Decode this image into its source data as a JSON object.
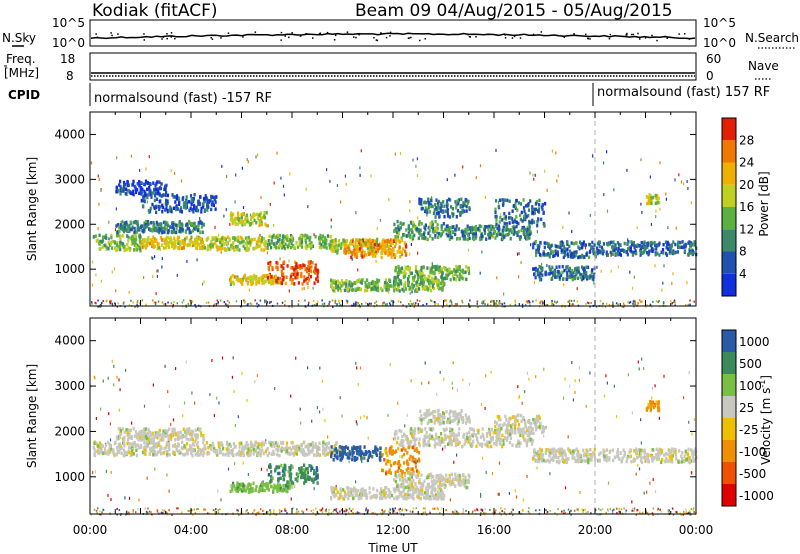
{
  "header": {
    "station": "Kodiak (fitACF)",
    "beam_info": "Beam 09 04/Aug/2015 - 05/Aug/2015"
  },
  "strip_labels": {
    "nsky": "N.Sky",
    "nsky_ticks": [
      "10^5",
      "10^0"
    ],
    "nsearch": "N.Search",
    "nsearch_ticks": [
      "10^5",
      "10^0"
    ],
    "freq_top": "Freq.",
    "freq_bottom": "[MHz]",
    "freq_ticks": [
      "18",
      "8"
    ],
    "nave": "Nave",
    "nave_ticks": [
      "60",
      "0"
    ],
    "cpid": "CPID",
    "cpid_left": "normalsound (fast) -157 RF",
    "cpid_right": "normalsound (fast) 157 RF"
  },
  "colors": {
    "power": [
      "#1030e0",
      "#2050b0",
      "#3a8a6a",
      "#5ab040",
      "#c0d020",
      "#f0b000",
      "#f07a00",
      "#e02000"
    ],
    "velocity": [
      "#e00000",
      "#f05000",
      "#f09000",
      "#f0c000",
      "#c8c8c0",
      "#7ac040",
      "#3a8a5a",
      "#2a5aa8"
    ],
    "dashed": "#b0b0b0"
  },
  "chart_data": [
    {
      "type": "heatmap",
      "name": "power",
      "ylabel": "Slant Range [km]",
      "ylim": [
        180,
        4500
      ],
      "yticks": [
        "1000",
        "2000",
        "3000",
        "4000"
      ],
      "colorbar_label": "Power [dB]",
      "colorbar_ticks": [
        "4",
        "8",
        "12",
        "16",
        "20",
        "24",
        "28"
      ],
      "colorbar_range": [
        0,
        32
      ],
      "bands": [
        {
          "t0": 0.1,
          "t1": 2.0,
          "r0": 1450,
          "r1": 1800,
          "v": 14
        },
        {
          "t0": 2.0,
          "t1": 4.5,
          "r0": 1500,
          "r1": 1750,
          "v": 20
        },
        {
          "t0": 4.5,
          "t1": 7.0,
          "r0": 1450,
          "r1": 1750,
          "v": 18
        },
        {
          "t0": 7.0,
          "t1": 9.5,
          "r0": 1500,
          "r1": 1800,
          "v": 14
        },
        {
          "t0": 9.5,
          "t1": 12.0,
          "r0": 1400,
          "r1": 1700,
          "v": 18
        },
        {
          "t0": 12.0,
          "t1": 14.0,
          "r0": 1700,
          "r1": 2100,
          "v": 12
        },
        {
          "t0": 14.0,
          "t1": 17.5,
          "r0": 1700,
          "r1": 2000,
          "v": 10
        },
        {
          "t0": 17.5,
          "t1": 20.0,
          "r0": 1300,
          "r1": 1650,
          "v": 8
        },
        {
          "t0": 20.0,
          "t1": 24.0,
          "r0": 1350,
          "r1": 1650,
          "v": 7
        },
        {
          "t0": 1.0,
          "t1": 4.5,
          "r0": 1850,
          "r1": 2100,
          "v": 10
        },
        {
          "t0": 5.5,
          "t1": 7.0,
          "r0": 2000,
          "r1": 2300,
          "v": 18
        },
        {
          "t0": 5.5,
          "t1": 7.5,
          "r0": 700,
          "r1": 900,
          "v": 20
        },
        {
          "t0": 7.0,
          "t1": 9.0,
          "r0": 700,
          "r1": 1200,
          "v": 28
        },
        {
          "t0": 9.5,
          "t1": 14.0,
          "r0": 550,
          "r1": 800,
          "v": 14
        },
        {
          "t0": 10.0,
          "t1": 12.5,
          "r0": 1300,
          "r1": 1700,
          "v": 24
        },
        {
          "t0": 12.0,
          "t1": 15.0,
          "r0": 800,
          "r1": 1100,
          "v": 14
        },
        {
          "t0": 2.0,
          "t1": 5.0,
          "r0": 2300,
          "r1": 2700,
          "v": 6
        },
        {
          "t0": 1.0,
          "t1": 3.0,
          "r0": 2700,
          "r1": 3000,
          "v": 5
        },
        {
          "t0": 13.0,
          "t1": 15.0,
          "r0": 2200,
          "r1": 2600,
          "v": 8
        },
        {
          "t0": 16.0,
          "t1": 18.0,
          "r0": 2000,
          "r1": 2600,
          "v": 8
        },
        {
          "t0": 17.5,
          "t1": 20.0,
          "r0": 800,
          "r1": 1100,
          "v": 8
        },
        {
          "t0": 22.0,
          "t1": 22.5,
          "r0": 2500,
          "r1": 2700,
          "v": 18
        }
      ]
    },
    {
      "type": "heatmap",
      "name": "velocity",
      "ylabel": "Slant Range [km]",
      "ylim": [
        180,
        4500
      ],
      "yticks": [
        "1000",
        "2000",
        "3000",
        "4000"
      ],
      "colorbar_label": "Velocity [m s",
      "colorbar_label_sup": "-1",
      "colorbar_ticks": [
        "1000",
        "500",
        "100",
        "25",
        "-25",
        "-100",
        "-500",
        "-1000"
      ],
      "bands": [
        {
          "t0": 0.1,
          "t1": 2.0,
          "r0": 1500,
          "r1": 1800,
          "c": 4
        },
        {
          "t0": 2.0,
          "t1": 7.0,
          "r0": 1500,
          "r1": 1800,
          "c": 4
        },
        {
          "t0": 7.0,
          "t1": 10.0,
          "r0": 1500,
          "r1": 1800,
          "c": 4
        },
        {
          "t0": 12.0,
          "t1": 17.5,
          "r0": 1700,
          "r1": 2100,
          "c": 4
        },
        {
          "t0": 17.5,
          "t1": 24.0,
          "r0": 1350,
          "r1": 1650,
          "c": 4
        },
        {
          "t0": 1.0,
          "t1": 4.5,
          "r0": 1850,
          "r1": 2100,
          "c": 4
        },
        {
          "t0": 5.5,
          "t1": 7.0,
          "r0": 700,
          "r1": 900,
          "c": 5
        },
        {
          "t0": 7.0,
          "t1": 8.0,
          "r0": 700,
          "r1": 900,
          "c": 5
        },
        {
          "t0": 7.0,
          "t1": 9.0,
          "r0": 900,
          "r1": 1300,
          "c": 6
        },
        {
          "t0": 9.5,
          "t1": 11.5,
          "r0": 1400,
          "r1": 1700,
          "c": 7
        },
        {
          "t0": 11.5,
          "t1": 13.0,
          "r0": 1100,
          "r1": 1700,
          "c": 2
        },
        {
          "t0": 9.5,
          "t1": 14.0,
          "r0": 550,
          "r1": 800,
          "c": 4
        },
        {
          "t0": 12.0,
          "t1": 15.0,
          "r0": 800,
          "r1": 1100,
          "c": 4
        },
        {
          "t0": 13.0,
          "t1": 15.0,
          "r0": 2200,
          "r1": 2500,
          "c": 4
        },
        {
          "t0": 16.0,
          "t1": 18.0,
          "r0": 2000,
          "r1": 2400,
          "c": 4
        },
        {
          "t0": 22.0,
          "t1": 22.5,
          "r0": 2500,
          "r1": 2700,
          "c": 2
        }
      ]
    }
  ],
  "x_axis": {
    "label": "Time UT",
    "ticks": [
      "00:00",
      "04:00",
      "08:00",
      "12:00",
      "16:00",
      "20:00",
      "00:00"
    ],
    "range_hours": [
      0,
      24
    ],
    "dashed_line_hour": 20
  }
}
